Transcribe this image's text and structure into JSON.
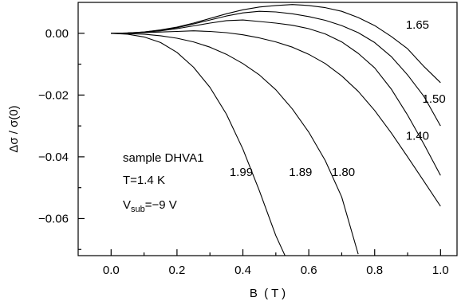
{
  "chart_data": {
    "type": "line",
    "xlabel": "B  ( T )",
    "ylabel": "Δσ / σ(0)",
    "xlim": [
      -0.1,
      1.05
    ],
    "ylim": [
      -0.072,
      0.01
    ],
    "xticks": [
      0.0,
      0.2,
      0.4,
      0.6,
      0.8,
      1.0
    ],
    "xtick_labels": [
      "0.0",
      "0.2",
      "0.4",
      "0.6",
      "0.8",
      "1.0"
    ],
    "yticks": [
      0.0,
      -0.02,
      -0.04,
      -0.06
    ],
    "ytick_labels": [
      "0.00",
      "−0.02",
      "−0.04",
      "−0.06"
    ],
    "grid": false,
    "annotation": {
      "line1": "sample DHVA1",
      "line2": "T=1.4 K",
      "line3_main": "V",
      "line3_sub": "sub",
      "line3_rest": "=−9 V"
    },
    "series": [
      {
        "name": "1.65",
        "x": [
          0,
          0.05,
          0.1,
          0.15,
          0.2,
          0.25,
          0.3,
          0.35,
          0.4,
          0.45,
          0.5,
          0.55,
          0.6,
          0.65,
          0.7,
          0.75,
          0.8,
          0.85,
          0.9,
          0.95,
          1.0
        ],
        "y": [
          0,
          0.0001,
          0.0004,
          0.0011,
          0.002,
          0.0033,
          0.0048,
          0.0063,
          0.0076,
          0.0085,
          0.009,
          0.0093,
          0.009,
          0.0083,
          0.0071,
          0.0051,
          0.0025,
          -0.001,
          -0.005,
          -0.0108,
          -0.016
        ]
      },
      {
        "name": "1.50",
        "x": [
          0,
          0.05,
          0.1,
          0.15,
          0.2,
          0.25,
          0.3,
          0.35,
          0.4,
          0.45,
          0.5,
          0.55,
          0.6,
          0.65,
          0.7,
          0.75,
          0.8,
          0.85,
          0.9,
          0.95,
          1.0
        ],
        "y": [
          0,
          0.0001,
          0.0004,
          0.001,
          0.0018,
          0.003,
          0.0043,
          0.0056,
          0.0066,
          0.0071,
          0.0069,
          0.0063,
          0.0054,
          0.0042,
          0.0025,
          0.0002,
          -0.003,
          -0.0075,
          -0.0135,
          -0.0205,
          -0.03
        ]
      },
      {
        "name": "1.40",
        "x": [
          0,
          0.05,
          0.1,
          0.15,
          0.2,
          0.25,
          0.3,
          0.35,
          0.4,
          0.45,
          0.5,
          0.55,
          0.6,
          0.65,
          0.7,
          0.75,
          0.8,
          0.85,
          0.9,
          0.95,
          1.0
        ],
        "y": [
          0,
          0.0001,
          0.0003,
          0.0008,
          0.0015,
          0.0024,
          0.0033,
          0.0041,
          0.0043,
          0.0038,
          0.0033,
          0.0026,
          0.0015,
          -0.0002,
          -0.0028,
          -0.0065,
          -0.0112,
          -0.018,
          -0.0265,
          -0.036,
          -0.046
        ]
      },
      {
        "name": "1.80",
        "x": [
          0,
          0.05,
          0.1,
          0.15,
          0.2,
          0.25,
          0.3,
          0.35,
          0.4,
          0.45,
          0.5,
          0.55,
          0.6,
          0.65,
          0.7,
          0.75,
          0.8,
          0.85,
          0.9,
          0.95,
          1.0
        ],
        "y": [
          0,
          0.0001,
          0.0002,
          0.0004,
          0.0006,
          0.0008,
          0.0006,
          0.0002,
          -0.0005,
          -0.0015,
          -0.0028,
          -0.0045,
          -0.0068,
          -0.0098,
          -0.0138,
          -0.0188,
          -0.025,
          -0.0322,
          -0.04,
          -0.048,
          -0.056
        ]
      },
      {
        "name": "1.89",
        "x": [
          0,
          0.05,
          0.1,
          0.15,
          0.2,
          0.25,
          0.3,
          0.35,
          0.4,
          0.45,
          0.5,
          0.55,
          0.6,
          0.65,
          0.7,
          0.75
        ],
        "y": [
          0,
          -0.0001,
          -0.0003,
          -0.0008,
          -0.0016,
          -0.0028,
          -0.0045,
          -0.0068,
          -0.0098,
          -0.0135,
          -0.0183,
          -0.0245,
          -0.032,
          -0.0412,
          -0.053,
          -0.0715
        ]
      },
      {
        "name": "1.99",
        "x": [
          0,
          0.05,
          0.1,
          0.15,
          0.2,
          0.25,
          0.3,
          0.35,
          0.4,
          0.45,
          0.5,
          0.53
        ],
        "y": [
          0,
          -0.0003,
          -0.0012,
          -0.003,
          -0.0062,
          -0.011,
          -0.0175,
          -0.0262,
          -0.0375,
          -0.051,
          -0.0655,
          -0.0725
        ]
      }
    ]
  }
}
